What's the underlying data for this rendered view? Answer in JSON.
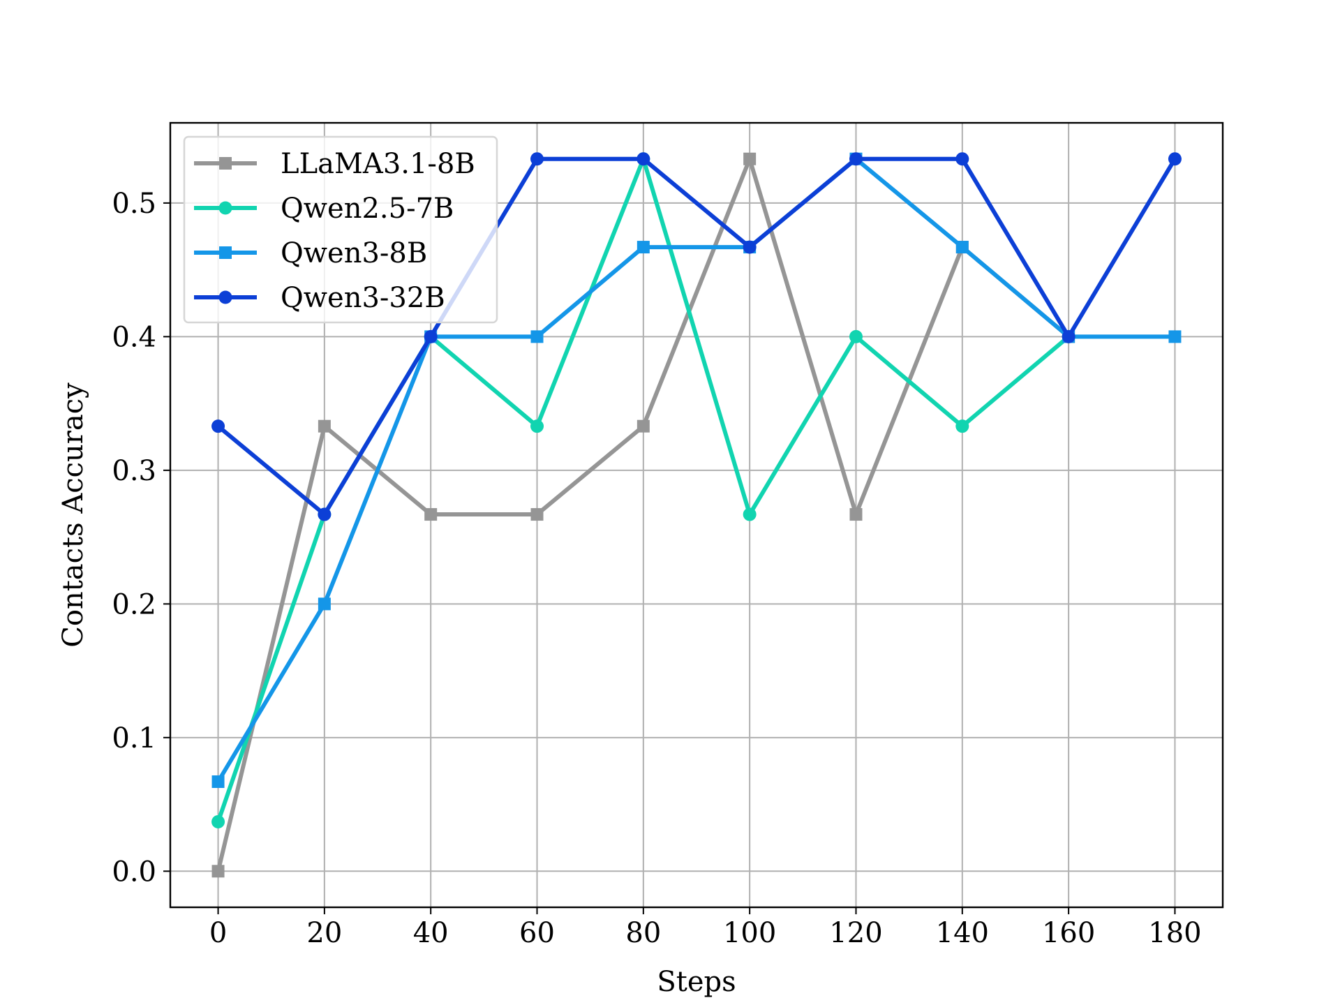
{
  "chart_data": {
    "type": "line",
    "title": "",
    "xlabel": "Steps",
    "ylabel": "Contacts Accuracy",
    "x": [
      0,
      20,
      40,
      60,
      80,
      100,
      120,
      140,
      160,
      180
    ],
    "xlim": [
      -9,
      189
    ],
    "ylim": [
      -0.027,
      0.56
    ],
    "xticks": [
      0,
      20,
      40,
      60,
      80,
      100,
      120,
      140,
      160,
      180
    ],
    "yticks": [
      0.0,
      0.1,
      0.2,
      0.3,
      0.4,
      0.5
    ],
    "ytick_labels": [
      "0.0",
      "0.1",
      "0.2",
      "0.3",
      "0.4",
      "0.5"
    ],
    "grid": true,
    "legend_position": "top-left",
    "series": [
      {
        "name": "LLaMA3.1-8B",
        "color": "#959595",
        "marker": "square",
        "values": [
          0.0,
          0.333,
          0.267,
          0.267,
          0.333,
          0.533,
          0.267,
          0.467,
          0.4,
          null
        ]
      },
      {
        "name": "Qwen2.5-7B",
        "color": "#11d4b0",
        "marker": "circle",
        "values": [
          0.037,
          0.267,
          0.4,
          0.333,
          0.533,
          0.267,
          0.4,
          0.333,
          0.4,
          null
        ]
      },
      {
        "name": "Qwen3-8B",
        "color": "#1496e8",
        "marker": "square",
        "values": [
          0.067,
          0.2,
          0.4,
          0.4,
          0.467,
          0.467,
          0.533,
          0.467,
          0.4,
          0.4
        ]
      },
      {
        "name": "Qwen3-32B",
        "color": "#0c3fd6",
        "marker": "circle",
        "values": [
          0.333,
          0.267,
          0.4,
          0.533,
          0.533,
          0.467,
          0.533,
          0.533,
          0.4,
          0.533
        ]
      }
    ]
  }
}
